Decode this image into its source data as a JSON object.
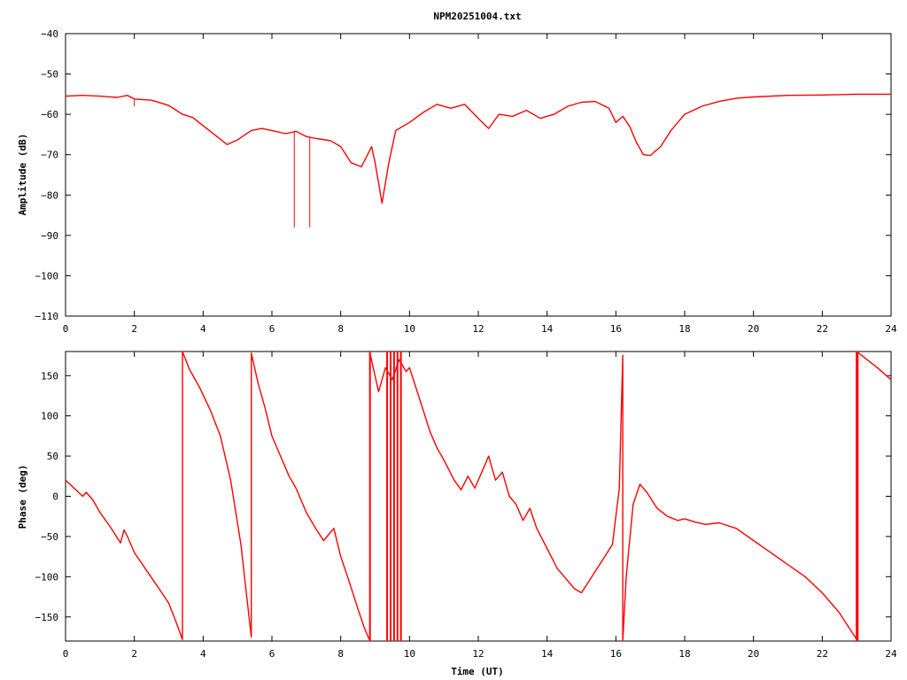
{
  "title": "NPM20251004.txt",
  "colors": {
    "series": "#ff0000",
    "axis": "#000000",
    "background": "#ffffff"
  },
  "chart_data": [
    {
      "type": "line",
      "title": "NPM20251004.txt",
      "xlabel": "",
      "ylabel": "Amplitude (dB)",
      "xlim": [
        0,
        24
      ],
      "ylim": [
        -110,
        -40
      ],
      "xticks": [
        0,
        2,
        4,
        6,
        8,
        10,
        12,
        14,
        16,
        18,
        20,
        22,
        24
      ],
      "yticks": [
        -110,
        -100,
        -90,
        -80,
        -70,
        -60,
        -50,
        -40
      ],
      "grid": false,
      "legend": "none",
      "series": [
        {
          "x": [
            0,
            0.5,
            1.0,
            1.5,
            1.8,
            2.0,
            2.5,
            3.0,
            3.4,
            3.7,
            4.0,
            4.4,
            4.7,
            5.0,
            5.4,
            5.7,
            6.0,
            6.4,
            6.7,
            7.0,
            7.3,
            7.7,
            8.0,
            8.3,
            8.6,
            8.9,
            9.0,
            9.2,
            9.4,
            9.6,
            10.0,
            10.4,
            10.8,
            11.2,
            11.6,
            12.0,
            12.3,
            12.6,
            13.0,
            13.4,
            13.8,
            14.2,
            14.6,
            15.0,
            15.4,
            15.8,
            16.0,
            16.2,
            16.4,
            16.6,
            16.8,
            17.0,
            17.3,
            17.6,
            18.0,
            18.5,
            19.0,
            19.5,
            20.0,
            21.0,
            22.0,
            23.0,
            24.0
          ],
          "y": [
            -55.5,
            -55.3,
            -55.5,
            -55.8,
            -55.3,
            -56.2,
            -56.5,
            -57.8,
            -60.0,
            -60.8,
            -62.8,
            -65.5,
            -67.5,
            -66.3,
            -64.0,
            -63.5,
            -64.0,
            -64.8,
            -64.2,
            -65.5,
            -66.0,
            -66.5,
            -68.0,
            -72.0,
            -73.0,
            -68.0,
            -72.0,
            -82.0,
            -72.0,
            -64.0,
            -62.0,
            -59.5,
            -57.5,
            -58.5,
            -57.5,
            -61.0,
            -63.5,
            -60.0,
            -60.5,
            -59.0,
            -61.0,
            -60.0,
            -58.0,
            -57.0,
            -56.8,
            -58.5,
            -62.0,
            -60.5,
            -63.0,
            -67.0,
            -70.0,
            -70.2,
            -68.0,
            -64.0,
            -60.0,
            -58.0,
            -56.8,
            -56.0,
            -55.7,
            -55.3,
            -55.2,
            -55.0,
            -55.0
          ]
        }
      ],
      "spikes": [
        {
          "x": 2.0,
          "y": -58.0
        },
        {
          "x": 6.65,
          "y": -88.0
        },
        {
          "x": 7.1,
          "y": -88.0
        }
      ]
    },
    {
      "type": "line",
      "title": "",
      "xlabel": "Time (UT)",
      "ylabel": "Phase (deg)",
      "xlim": [
        0,
        24
      ],
      "ylim": [
        -180,
        180
      ],
      "xticks": [
        0,
        2,
        4,
        6,
        8,
        10,
        12,
        14,
        16,
        18,
        20,
        22,
        24
      ],
      "yticks": [
        -150,
        -100,
        -50,
        0,
        50,
        100,
        150
      ],
      "grid": false,
      "legend": "none",
      "series": [
        {
          "x": [
            0,
            0.3,
            0.5,
            0.6,
            0.8,
            1.0,
            1.3,
            1.6,
            1.7,
            1.8,
            2.0,
            2.4,
            2.8,
            3.0,
            3.2,
            3.4,
            3.4,
            3.6,
            3.9,
            4.2,
            4.5,
            4.8,
            5.1,
            5.4,
            5.4,
            5.6,
            5.8,
            6.0,
            6.3,
            6.5,
            6.7,
            7.0,
            7.3,
            7.5,
            7.8,
            8.0,
            8.2,
            8.5,
            8.7,
            8.85,
            8.85,
            9.1,
            9.3,
            9.5,
            9.7,
            9.9,
            10.0,
            10.3,
            10.6,
            10.8,
            11.0,
            11.3,
            11.5,
            11.7,
            11.9,
            12.1,
            12.3,
            12.5,
            12.7,
            12.9,
            13.1,
            13.3,
            13.5,
            13.7,
            14.0,
            14.3,
            14.6,
            14.8,
            15.0,
            15.3,
            15.6,
            15.9,
            16.1,
            16.2,
            16.2,
            16.3,
            16.5,
            16.7,
            16.9,
            17.2,
            17.5,
            17.8,
            18.0,
            18.3,
            18.6,
            19.0,
            19.5,
            20.0,
            20.5,
            21.0,
            21.5,
            22.0,
            22.5,
            23.0,
            23.0,
            23.3,
            23.6,
            24.0
          ],
          "y": [
            20,
            8,
            0,
            5,
            -5,
            -20,
            -38,
            -58,
            -42,
            -50,
            -70,
            -95,
            -120,
            -133,
            -155,
            -178,
            180,
            158,
            135,
            108,
            75,
            20,
            -60,
            -175,
            178,
            140,
            110,
            75,
            45,
            25,
            10,
            -20,
            -42,
            -55,
            -40,
            -75,
            -100,
            -140,
            -165,
            -180,
            178,
            130,
            160,
            145,
            170,
            155,
            160,
            120,
            80,
            60,
            45,
            20,
            8,
            25,
            10,
            30,
            50,
            20,
            30,
            0,
            -10,
            -30,
            -15,
            -40,
            -65,
            -90,
            -105,
            -115,
            -120,
            -100,
            -80,
            -60,
            10,
            175,
            -180,
            -100,
            -10,
            15,
            5,
            -15,
            -25,
            -30,
            -28,
            -32,
            -35,
            -33,
            -40,
            -55,
            -70,
            -85,
            -100,
            -120,
            -145,
            -178,
            180,
            170,
            160,
            145
          ]
        }
      ],
      "bursts": [
        {
          "x": 8.85,
          "y_min": -180,
          "y_max": 180
        },
        {
          "x": 9.35,
          "y_min": -180,
          "y_max": 180
        },
        {
          "x": 9.45,
          "y_min": -180,
          "y_max": 180
        },
        {
          "x": 9.55,
          "y_min": -180,
          "y_max": 180
        },
        {
          "x": 9.65,
          "y_min": -180,
          "y_max": 180
        },
        {
          "x": 9.75,
          "y_min": -180,
          "y_max": 180
        },
        {
          "x": 23.0,
          "y_min": -180,
          "y_max": 180
        },
        {
          "x": 23.03,
          "y_min": -180,
          "y_max": 180
        }
      ]
    }
  ]
}
